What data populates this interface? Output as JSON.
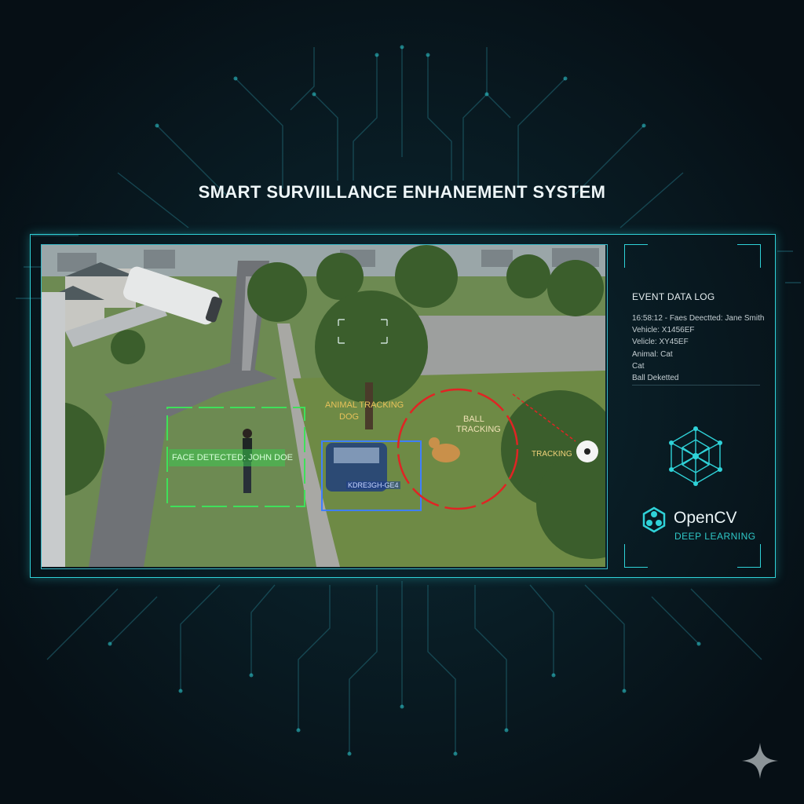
{
  "title": "SMART SURVIILLANCE ENHANEMENT SYSTEM",
  "detections": {
    "face": "FACE DETECTED: JOHN DOE",
    "animal_line1": "ANIMAL TRACKING",
    "animal_line2": "DOG",
    "ball_line1": "BALL",
    "ball_line2": "TRACKING",
    "tracking": "TRACKING",
    "plate": "KDRE3GH-GE4"
  },
  "event_log": {
    "title": "EVENT DATA LOG",
    "entries": [
      "16:58:12 - Faes Deectted: Jane Smith",
      "Vehicle: X1456EF",
      "Velicle: XY45EF",
      "Animal: Cat",
      "Cat",
      "Ball Deketted"
    ]
  },
  "branding": {
    "name": "OpenCV",
    "subtitle": "DEEP LEARNING"
  },
  "colors": {
    "accent": "#2fd2d8",
    "face_box": "#3fe05a",
    "vehicle_box": "#3f7fff",
    "tracking_ring": "#e02424",
    "background": "#07141c"
  },
  "icons": [
    "security-camera-icon",
    "neural-network-icon",
    "opencv-logo-icon",
    "sparkle-icon"
  ]
}
